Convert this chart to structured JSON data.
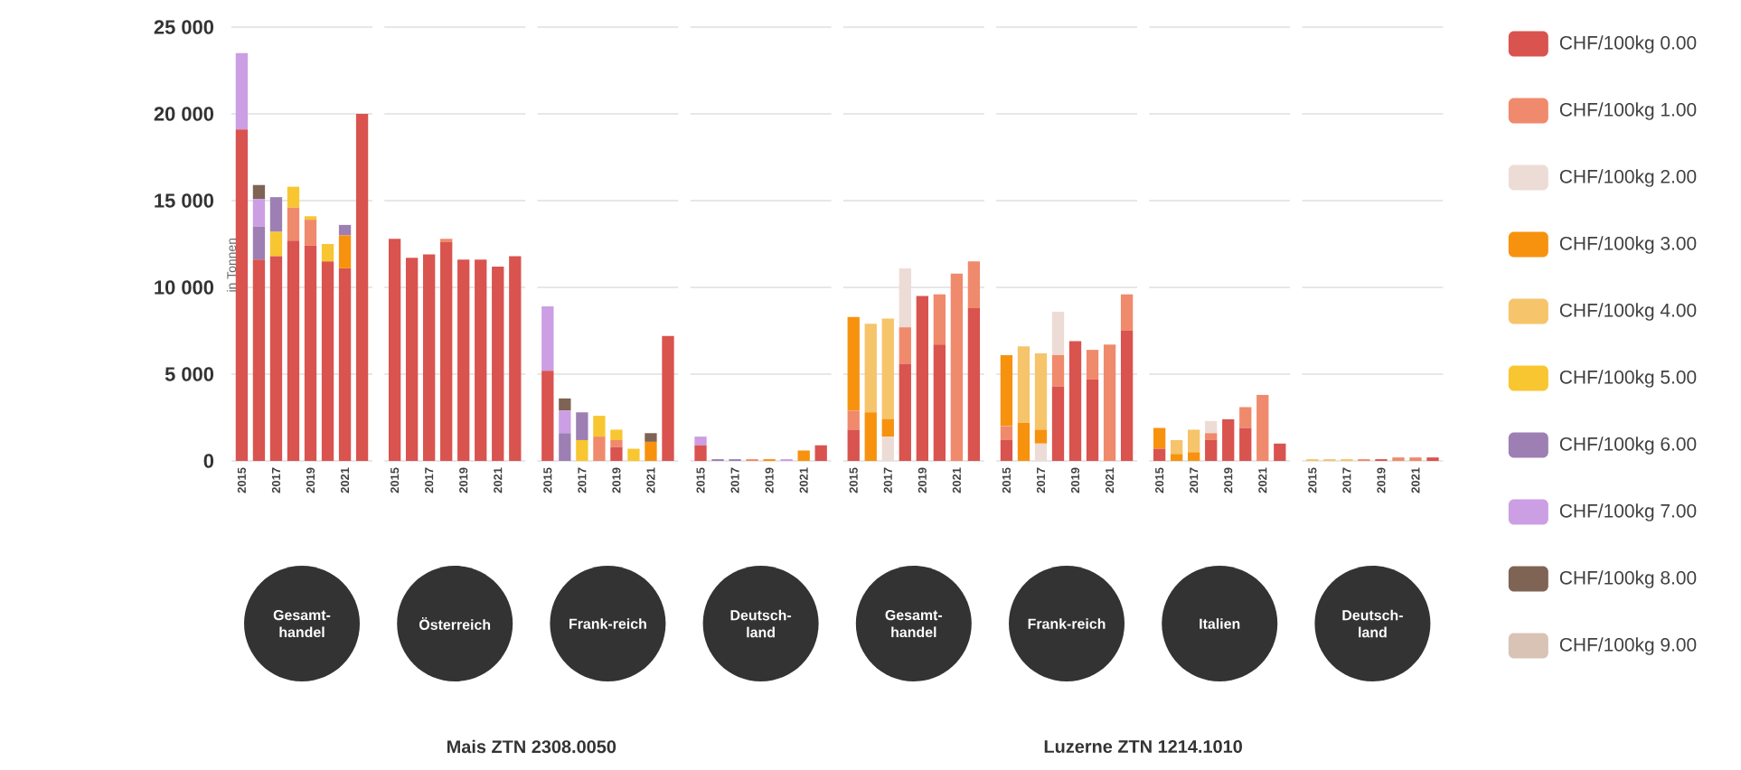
{
  "chart_data": [
    {
      "type": "bar",
      "stacked": true,
      "xlabel": "Gesamt-handel",
      "ylabel": "in Tonnen",
      "categories": [
        "2015",
        null,
        "2017",
        null,
        "2019",
        null,
        "2021",
        null
      ],
      "ylim": [
        0,
        25000
      ],
      "yticks": [
        0,
        {
          "value": 5000,
          "label": "5 000"
        },
        {
          "value": 10000,
          "label": "10 000"
        },
        {
          "value": 15000,
          "label": "15 000"
        },
        {
          "value": 20000,
          "label": "20 000"
        },
        {
          "value": 25000,
          "label": "25 000"
        }
      ],
      "grid": "y",
      "series": [
        {
          "color": "#d9534f",
          "values": [
            19100,
            11600,
            11800,
            12700,
            12400,
            11500,
            11100,
            20000
          ]
        },
        {
          "color": "#f08a6c",
          "values": [
            null,
            null,
            null,
            1900,
            1500,
            null,
            null,
            null
          ]
        },
        {
          "color": "#f7920f",
          "values": [
            null,
            null,
            null,
            null,
            null,
            null,
            1900,
            null
          ]
        },
        {
          "color": "#f8c630",
          "values": [
            null,
            null,
            1400,
            1200,
            200,
            1000,
            null,
            null
          ]
        },
        {
          "color": "#9d7fb3",
          "values": [
            null,
            1900,
            2000,
            null,
            null,
            null,
            600,
            null
          ]
        },
        {
          "color": "#cc9ee3",
          "values": [
            4400,
            1600,
            null,
            null,
            null,
            null,
            null,
            null
          ]
        },
        {
          "color": "#7f6354",
          "values": [
            null,
            800,
            null,
            null,
            null,
            null,
            null,
            null
          ]
        }
      ]
    },
    {
      "type": "bar",
      "stacked": true,
      "xlabel": "Österreich",
      "tick_labels": "x",
      "annotations": [
        "Mais ZTN 2308.0050"
      ],
      "categories": [
        "2015",
        null,
        "2017",
        null,
        "2019",
        null,
        "2021",
        null
      ],
      "ylim": [
        0,
        25000
      ],
      "yticks": [
        0,
        5000,
        10000,
        15000,
        20000,
        25000
      ],
      "grid": "y",
      "series": [
        {
          "color": "#d9534f",
          "values": [
            12800,
            11700,
            11900,
            12600,
            11600,
            11600,
            11200,
            11800
          ]
        },
        {
          "color": "#f08a6c",
          "values": [
            null,
            null,
            null,
            200,
            null,
            null,
            null,
            null
          ]
        }
      ]
    },
    {
      "type": "bar",
      "stacked": true,
      "xlabel": "Frank-reich",
      "tick_labels": "x",
      "categories": [
        "2015",
        null,
        "2017",
        null,
        "2019",
        null,
        "2021",
        null
      ],
      "ylim": [
        0,
        25000
      ],
      "yticks": [
        0,
        5000,
        10000,
        15000,
        20000,
        25000
      ],
      "grid": "y",
      "series": [
        {
          "color": "#d9534f",
          "values": [
            5200,
            null,
            null,
            null,
            800,
            null,
            null,
            7200
          ]
        },
        {
          "color": "#f08a6c",
          "values": [
            null,
            null,
            null,
            1400,
            400,
            null,
            null,
            null
          ]
        },
        {
          "color": "#f7920f",
          "values": [
            null,
            null,
            null,
            null,
            null,
            null,
            1100,
            null
          ]
        },
        {
          "color": "#f8c630",
          "values": [
            null,
            null,
            1200,
            1200,
            600,
            700,
            null,
            null
          ]
        },
        {
          "color": "#9d7fb3",
          "values": [
            null,
            1600,
            1600,
            null,
            null,
            null,
            null,
            null
          ]
        },
        {
          "color": "#cc9ee3",
          "values": [
            3700,
            1300,
            null,
            null,
            null,
            null,
            null,
            null
          ]
        },
        {
          "color": "#7f6354",
          "values": [
            null,
            700,
            null,
            null,
            null,
            null,
            500,
            null
          ]
        }
      ]
    },
    {
      "type": "bar",
      "stacked": true,
      "xlabel": "Deutsch-land",
      "tick_labels": "x",
      "categories": [
        "2015",
        null,
        "2017",
        null,
        "2019",
        null,
        "2021",
        null
      ],
      "ylim": [
        0,
        25000
      ],
      "yticks": [
        0,
        5000,
        10000,
        15000,
        20000,
        25000
      ],
      "grid": "y",
      "series": [
        {
          "color": "#d9534f",
          "values": [
            900,
            null,
            null,
            null,
            null,
            null,
            null,
            900
          ]
        },
        {
          "color": "#f08a6c",
          "values": [
            null,
            null,
            null,
            100,
            null,
            null,
            null,
            null
          ]
        },
        {
          "color": "#f7920f",
          "values": [
            null,
            null,
            null,
            null,
            100,
            null,
            600,
            null
          ]
        },
        {
          "color": "#9d7fb3",
          "values": [
            null,
            100,
            100,
            null,
            null,
            null,
            null,
            null
          ]
        },
        {
          "color": "#cc9ee3",
          "values": [
            500,
            null,
            null,
            null,
            null,
            100,
            null,
            null
          ]
        }
      ]
    },
    {
      "type": "bar",
      "stacked": true,
      "xlabel": "Gesamt-handel",
      "tick_labels": "x",
      "categories": [
        "2015",
        null,
        "2017",
        null,
        "2019",
        null,
        "2021",
        null
      ],
      "ylim": [
        0,
        25000
      ],
      "yticks": [
        0,
        5000,
        10000,
        15000,
        20000,
        25000
      ],
      "grid": "y",
      "series": [
        {
          "color": "#d9534f",
          "values": [
            1800,
            null,
            null,
            5600,
            9500,
            6700,
            null,
            8800
          ]
        },
        {
          "color": "#f08a6c",
          "values": [
            1100,
            null,
            null,
            2100,
            null,
            2900,
            10800,
            2700
          ]
        },
        {
          "color": "#eddcd5",
          "values": [
            null,
            null,
            1400,
            3400,
            null,
            null,
            null,
            null
          ]
        },
        {
          "color": "#f7920f",
          "values": [
            5400,
            2800,
            1000,
            null,
            null,
            null,
            null,
            null
          ]
        },
        {
          "color": "#f6c46a",
          "values": [
            null,
            5100,
            5800,
            null,
            null,
            null,
            null,
            null
          ]
        }
      ]
    },
    {
      "type": "bar",
      "stacked": true,
      "xlabel": "Frank-reich",
      "tick_labels": "x",
      "annotations": [
        "Luzerne ZTN 1214.1010"
      ],
      "categories": [
        "2015",
        null,
        "2017",
        null,
        "2019",
        null,
        "2021",
        null
      ],
      "ylim": [
        0,
        25000
      ],
      "yticks": [
        0,
        5000,
        10000,
        15000,
        20000,
        25000
      ],
      "grid": "y",
      "series": [
        {
          "color": "#d9534f",
          "values": [
            1200,
            null,
            null,
            4300,
            6900,
            4700,
            null,
            7500
          ]
        },
        {
          "color": "#f08a6c",
          "values": [
            800,
            null,
            null,
            1800,
            null,
            1700,
            6700,
            2100
          ]
        },
        {
          "color": "#eddcd5",
          "values": [
            null,
            null,
            1000,
            2500,
            null,
            null,
            null,
            null
          ]
        },
        {
          "color": "#f7920f",
          "values": [
            4100,
            2200,
            800,
            null,
            null,
            null,
            null,
            null
          ]
        },
        {
          "color": "#f6c46a",
          "values": [
            null,
            4400,
            4400,
            null,
            null,
            null,
            null,
            null
          ]
        }
      ]
    },
    {
      "type": "bar",
      "stacked": true,
      "xlabel": "Italien",
      "tick_labels": "x",
      "categories": [
        "2015",
        null,
        "2017",
        null,
        "2019",
        null,
        "2021",
        null
      ],
      "ylim": [
        0,
        25000
      ],
      "yticks": [
        0,
        5000,
        10000,
        15000,
        20000,
        25000
      ],
      "grid": "y",
      "series": [
        {
          "color": "#d9534f",
          "values": [
            700,
            null,
            null,
            1200,
            2400,
            1900,
            null,
            1000
          ]
        },
        {
          "color": "#f08a6c",
          "values": [
            null,
            null,
            null,
            400,
            null,
            1200,
            3800,
            null
          ]
        },
        {
          "color": "#eddcd5",
          "values": [
            null,
            null,
            null,
            700,
            null,
            null,
            null,
            null
          ]
        },
        {
          "color": "#f7920f",
          "values": [
            1200,
            400,
            500,
            null,
            null,
            null,
            null,
            null
          ]
        },
        {
          "color": "#f6c46a",
          "values": [
            null,
            800,
            1300,
            null,
            null,
            null,
            null,
            null
          ]
        }
      ]
    },
    {
      "type": "bar",
      "stacked": true,
      "xlabel": "Deutsch-land",
      "tick_labels": "x",
      "legend": "right",
      "categories": [
        "2015",
        null,
        "2017",
        null,
        "2019",
        null,
        "2021",
        null
      ],
      "ylim": [
        0,
        25000
      ],
      "yticks": [
        0,
        5000,
        10000,
        15000,
        20000,
        25000
      ],
      "grid": "y",
      "series": [
        {
          "name": "CHF/100kg 0.00",
          "color": "#d9534f",
          "values": [
            null,
            null,
            null,
            null,
            100,
            null,
            null,
            200
          ]
        },
        {
          "name": "CHF/100kg 1.00",
          "color": "#f08a6c",
          "values": [
            null,
            null,
            null,
            100,
            null,
            200,
            200,
            null
          ]
        },
        {
          "name": "CHF/100kg 2.00",
          "color": "#eddcd5",
          "values": [
            null,
            null,
            null,
            null,
            null,
            null,
            null,
            null
          ]
        },
        {
          "name": "CHF/100kg 3.00",
          "color": "#f7920f",
          "values": [
            null,
            null,
            null,
            null,
            null,
            null,
            null,
            null
          ]
        },
        {
          "name": "CHF/100kg 4.00",
          "color": "#f6c46a",
          "values": [
            100,
            100,
            100,
            null,
            null,
            null,
            null,
            null
          ]
        },
        {
          "name": "CHF/100kg 5.00",
          "color": "#f8c630",
          "values": [
            null,
            null,
            null,
            null,
            null,
            null,
            null,
            null
          ]
        },
        {
          "name": "CHF/100kg 6.00",
          "color": "#9d7fb3",
          "values": [
            null,
            null,
            null,
            null,
            null,
            null,
            null,
            null
          ]
        },
        {
          "name": "CHF/100kg 7.00",
          "color": "#cc9ee3",
          "values": [
            null,
            null,
            null,
            null,
            null,
            null,
            null,
            null
          ]
        },
        {
          "name": "CHF/100kg 8.00",
          "color": "#7f6354",
          "values": [
            null,
            null,
            null,
            null,
            null,
            null,
            null,
            null
          ]
        },
        {
          "name": "CHF/100kg 9.00",
          "color": "#d8c3b5",
          "values": [
            null,
            null,
            null,
            null,
            null,
            null,
            null,
            null
          ]
        }
      ]
    }
  ]
}
